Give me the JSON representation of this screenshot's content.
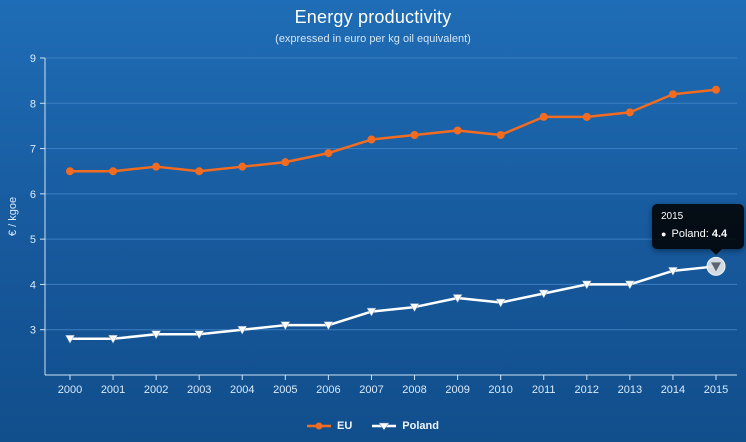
{
  "title": "Energy productivity",
  "subtitle": "(expressed in euro per kg oil equivalent)",
  "y_axis_title": "€ / kgoe",
  "legend": [
    {
      "name": "EU"
    },
    {
      "name": "Poland"
    }
  ],
  "tooltip": {
    "year": "2015",
    "series_label": "Poland:",
    "value": "4.4"
  },
  "colors": {
    "eu": "#f16c20",
    "poland": "#ffffff",
    "grid": "#3d7ec1",
    "axis_text": "#d9eafb",
    "tooltip_bg": "#020202"
  },
  "chart_data": {
    "type": "line",
    "title": "Energy productivity",
    "subtitle": "(expressed in euro per kg oil equivalent)",
    "ylabel": "€ / kgoe",
    "xlabel": "",
    "ylim": [
      2,
      9
    ],
    "yticks": [
      3,
      4,
      5,
      6,
      7,
      8,
      9
    ],
    "grid": true,
    "legend_position": "bottom",
    "categories": [
      "2000",
      "2001",
      "2002",
      "2003",
      "2004",
      "2005",
      "2006",
      "2007",
      "2008",
      "2009",
      "2010",
      "2011",
      "2012",
      "2013",
      "2014",
      "2015"
    ],
    "series": [
      {
        "name": "EU",
        "marker": "circle",
        "color": "#f16c20",
        "values": [
          6.5,
          6.5,
          6.6,
          6.5,
          6.6,
          6.7,
          6.9,
          7.2,
          7.3,
          7.4,
          7.3,
          7.7,
          7.7,
          7.8,
          8.2,
          8.3
        ]
      },
      {
        "name": "Poland",
        "marker": "triangle-down",
        "color": "#ffffff",
        "values": [
          2.8,
          2.8,
          2.9,
          2.9,
          3.0,
          3.1,
          3.1,
          3.4,
          3.5,
          3.7,
          3.6,
          3.8,
          4.0,
          4.0,
          4.3,
          4.4
        ]
      }
    ],
    "highlight": {
      "series": "Poland",
      "category": "2015",
      "value": 4.4
    }
  }
}
